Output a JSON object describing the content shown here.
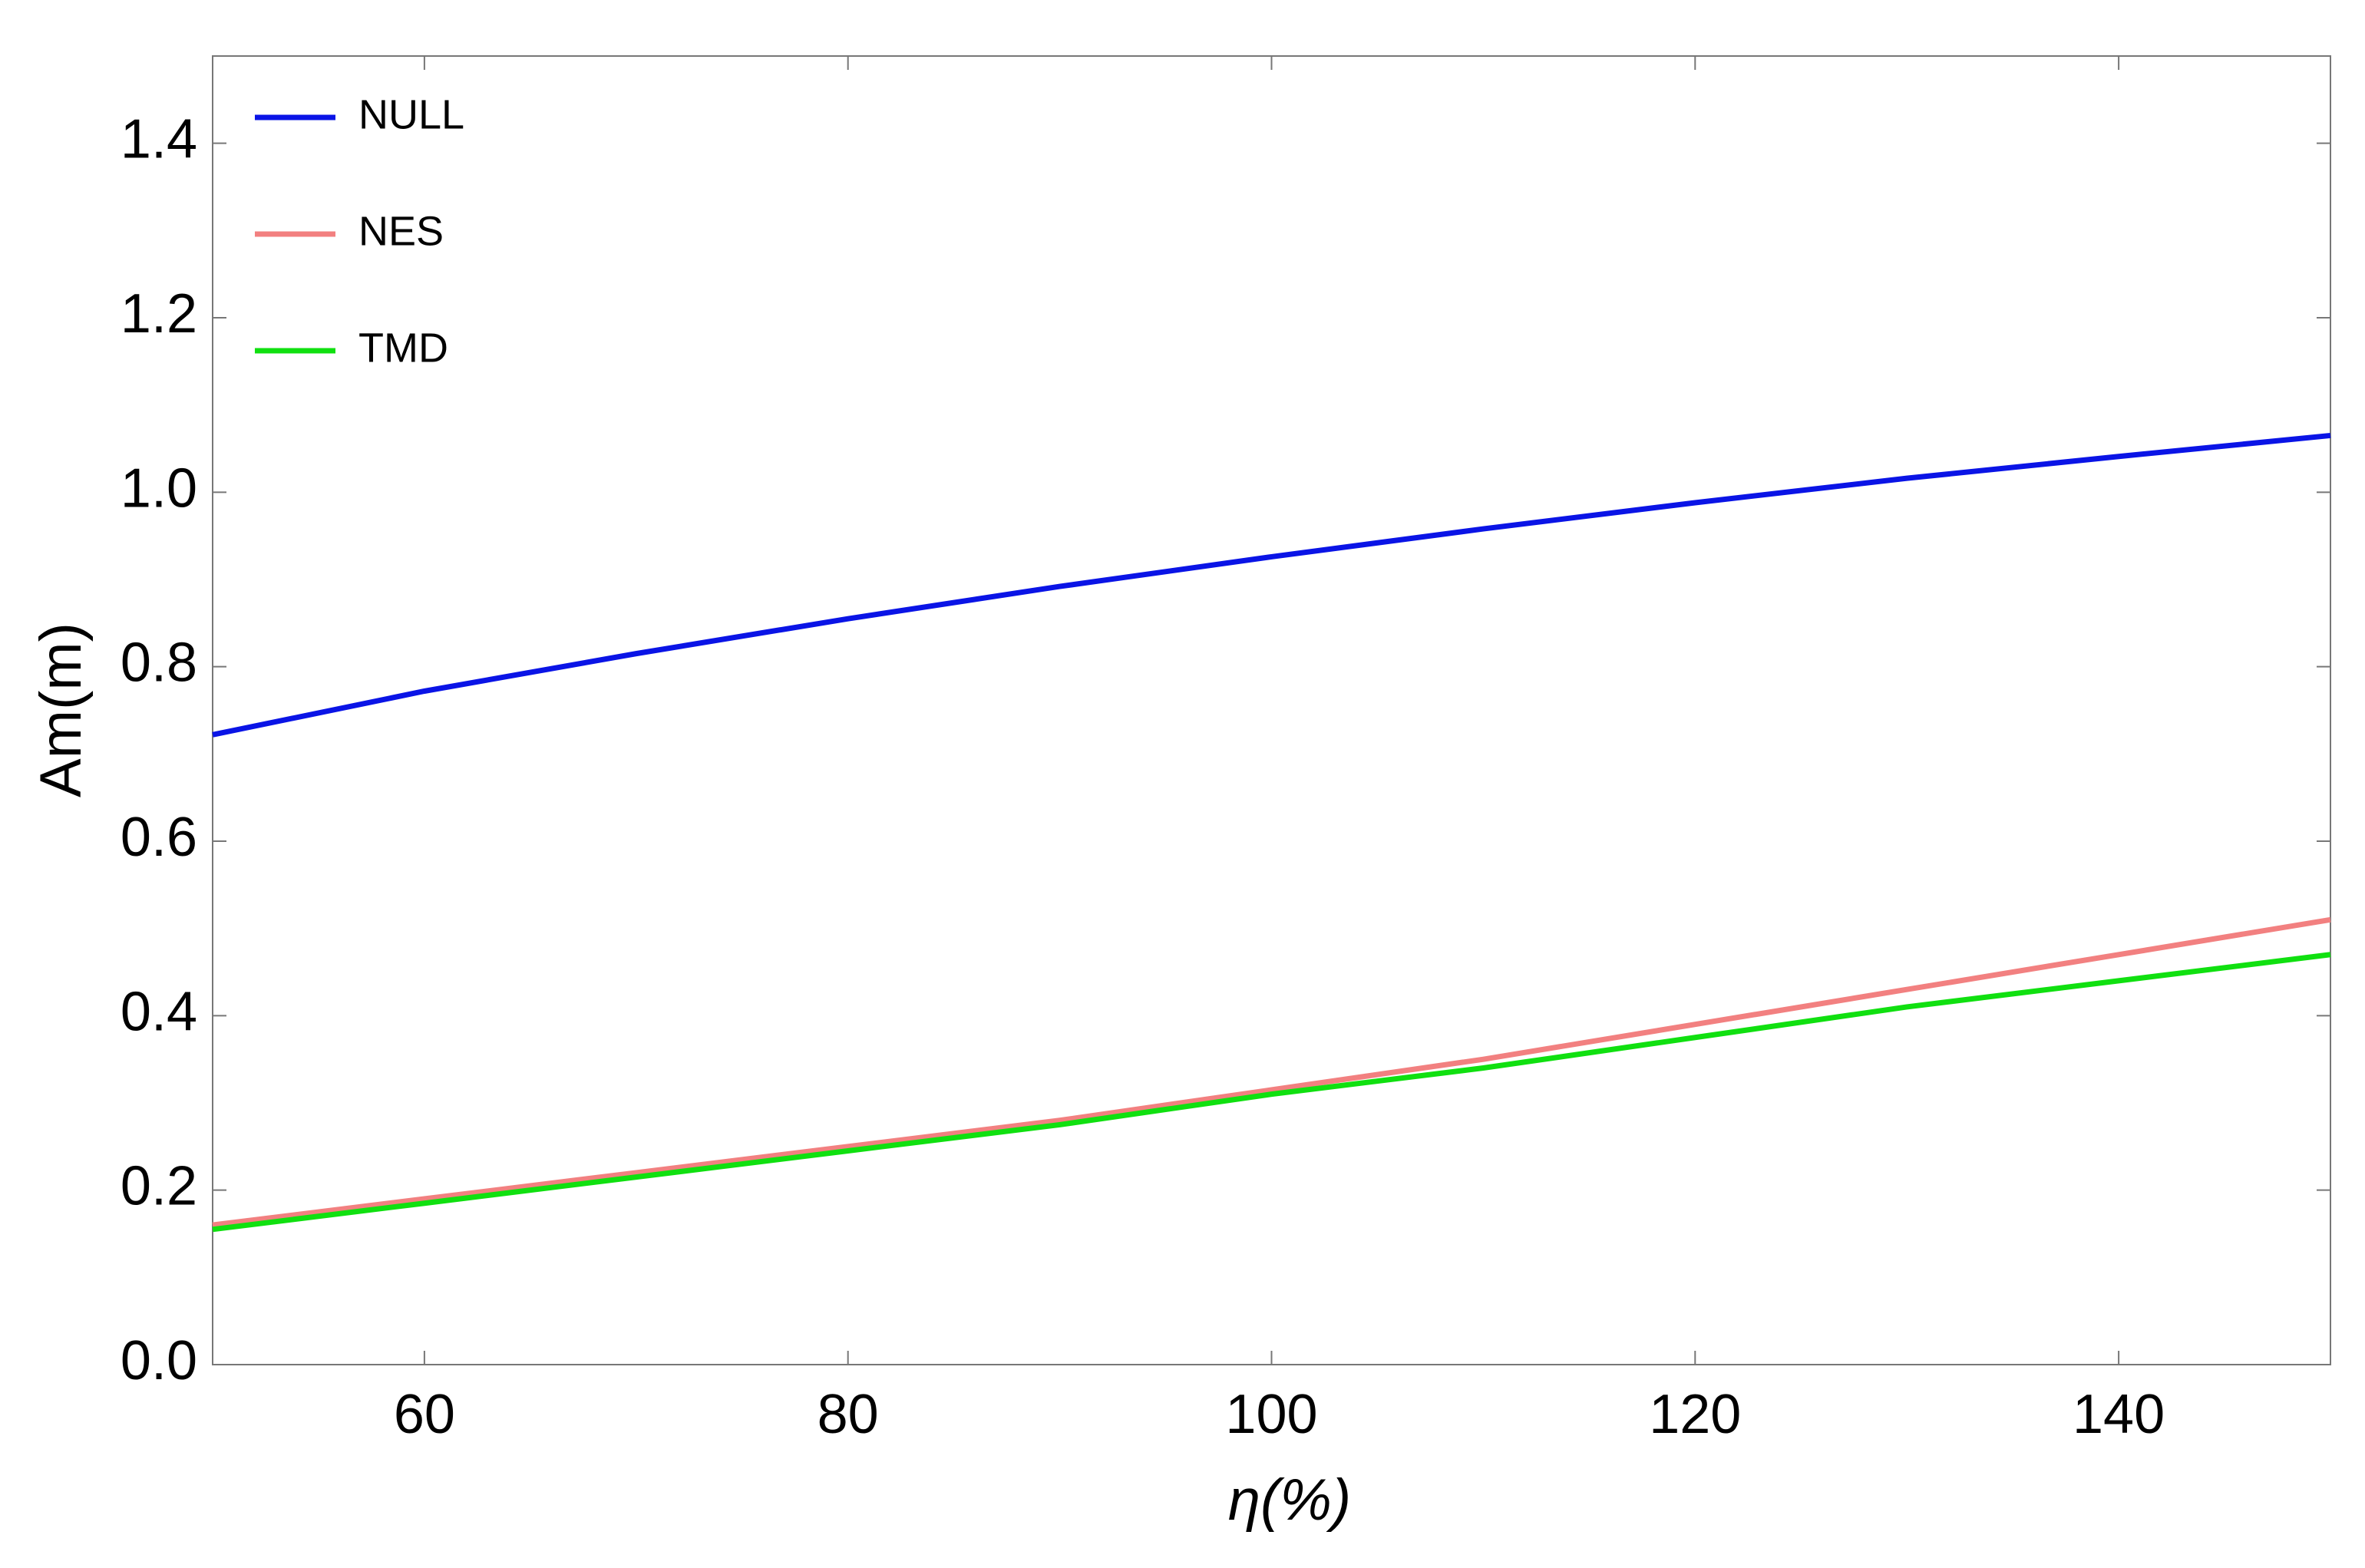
{
  "chart_data": {
    "type": "line",
    "x_label": "η(%)",
    "y_label": "Am(m)",
    "x": [
      50,
      60,
      70,
      80,
      90,
      100,
      110,
      120,
      130,
      140,
      150
    ],
    "series": [
      {
        "name": "NULL",
        "color": "#0a14e6",
        "values": [
          0.722,
          0.772,
          0.815,
          0.855,
          0.892,
          0.926,
          0.958,
          0.988,
          1.016,
          1.041,
          1.065
        ]
      },
      {
        "name": "NES",
        "color": "#f28080",
        "values": [
          0.16,
          0.19,
          0.22,
          0.25,
          0.28,
          0.315,
          0.35,
          0.39,
          0.43,
          0.47,
          0.51
        ]
      },
      {
        "name": "TMD",
        "color": "#10e010",
        "values": [
          0.155,
          0.185,
          0.215,
          0.245,
          0.275,
          0.31,
          0.34,
          0.375,
          0.41,
          0.44,
          0.47
        ]
      }
    ],
    "xlim": [
      50,
      150
    ],
    "xticks": [
      60,
      80,
      100,
      120,
      140
    ],
    "ylim": [
      0,
      1.5
    ],
    "yticks": [
      {
        "value": 0,
        "label": "0.0"
      },
      {
        "value": 0.2,
        "label": "0.2"
      },
      {
        "value": 0.4,
        "label": "0.4"
      },
      {
        "value": 0.6,
        "label": "0.6"
      },
      {
        "value": 0.8,
        "label": "0.8"
      },
      {
        "value": 1.0,
        "label": "1.0"
      },
      {
        "value": 1.2,
        "label": "1.2"
      },
      {
        "value": 1.4,
        "label": "1.4"
      }
    ],
    "legend": "upper left",
    "grid": false
  }
}
